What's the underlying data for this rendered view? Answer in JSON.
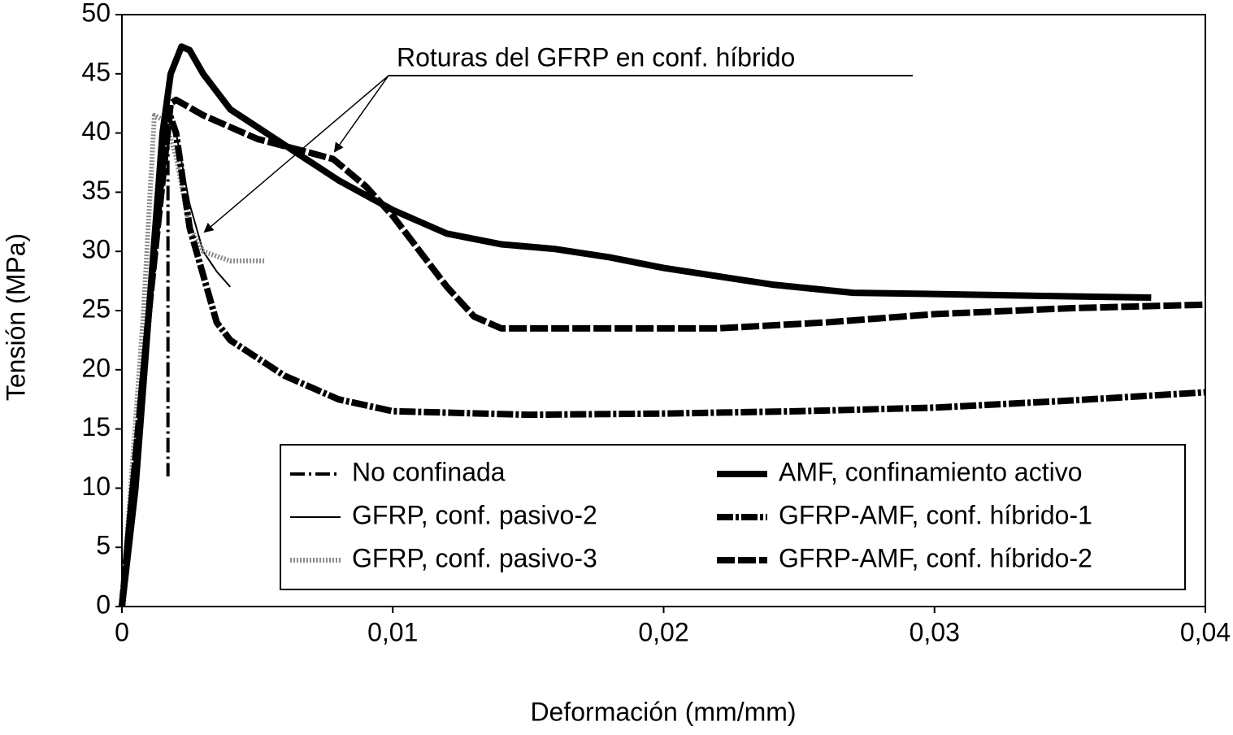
{
  "chart_data": {
    "type": "line",
    "xlabel": "Deformación (mm/mm)",
    "ylabel": "Tensión (MPa)",
    "xlim": [
      0,
      0.04
    ],
    "ylim": [
      0,
      50
    ],
    "xticks": [
      0,
      {
        "value": 0.01,
        "label": "0,01"
      },
      {
        "value": 0.02,
        "label": "0,02"
      },
      {
        "value": 0.03,
        "label": "0,03"
      },
      {
        "value": 0.04,
        "label": "0,04"
      }
    ],
    "yticks": [
      0,
      5,
      10,
      15,
      20,
      25,
      30,
      35,
      40,
      45,
      50
    ],
    "grid": false,
    "legend": "lower right",
    "annotation": "Roturas del GFRP en conf. híbrido",
    "series": [
      {
        "name": "No confinada",
        "color": "#000000",
        "style": "dash-dot-thin",
        "x": [
          0,
          0.0008,
          0.0014,
          0.0017,
          0.0017
        ],
        "values": [
          0,
          20,
          38,
          40,
          11
        ]
      },
      {
        "name": "GFRP, conf. pasivo-2",
        "color": "#000000",
        "style": "solid-thin",
        "x": [
          0,
          0.001,
          0.0017,
          0.002,
          0.0025,
          0.003,
          0.0035,
          0.004
        ],
        "values": [
          0,
          25,
          42,
          40,
          34,
          30,
          28.3,
          27
        ]
      },
      {
        "name": "GFRP, conf. pasivo-3",
        "color": "#8c8c8c",
        "style": "dotted",
        "x": [
          0,
          0.0008,
          0.0012,
          0.0016,
          0.002,
          0.0025,
          0.003,
          0.004,
          0.0053
        ],
        "values": [
          0,
          25,
          41.5,
          41,
          38,
          32,
          30,
          29.2,
          29.2
        ]
      },
      {
        "name": "AMF, confinamiento activo",
        "color": "#000000",
        "style": "solid-thick",
        "x": [
          0,
          0.0005,
          0.001,
          0.0015,
          0.0018,
          0.0022,
          0.0025,
          0.003,
          0.004,
          0.006,
          0.008,
          0.01,
          0.012,
          0.014,
          0.016,
          0.018,
          0.02,
          0.024,
          0.027,
          0.03,
          0.035,
          0.038
        ],
        "values": [
          0,
          10,
          25,
          40,
          45,
          47.3,
          47,
          45,
          42,
          39,
          36,
          33.5,
          31.5,
          30.6,
          30.2,
          29.5,
          28.6,
          27.2,
          26.5,
          26.4,
          26.2,
          26.1
        ]
      },
      {
        "name": "GFRP-AMF, conf. híbrido-1",
        "color": "#000000",
        "style": "dash-dot-thick",
        "x": [
          0,
          0.001,
          0.0017,
          0.002,
          0.0025,
          0.003,
          0.0035,
          0.004,
          0.006,
          0.008,
          0.01,
          0.015,
          0.02,
          0.025,
          0.03,
          0.035,
          0.04
        ],
        "values": [
          0,
          25,
          42,
          40,
          32,
          28,
          24,
          22.5,
          19.5,
          17.5,
          16.5,
          16.2,
          16.3,
          16.5,
          16.8,
          17.4,
          18.1
        ]
      },
      {
        "name": "GFRP-AMF, conf. híbrido-2",
        "color": "#000000",
        "style": "dashed-thick",
        "x": [
          0,
          0.001,
          0.0018,
          0.002,
          0.003,
          0.005,
          0.007,
          0.0078,
          0.009,
          0.01,
          0.012,
          0.013,
          0.014,
          0.018,
          0.022,
          0.026,
          0.03,
          0.035,
          0.04
        ],
        "values": [
          0,
          25,
          42.5,
          42.8,
          41.5,
          39.5,
          38.3,
          37.8,
          35.5,
          33,
          27,
          24.5,
          23.5,
          23.5,
          23.5,
          24,
          24.7,
          25.2,
          25.5
        ]
      }
    ]
  }
}
